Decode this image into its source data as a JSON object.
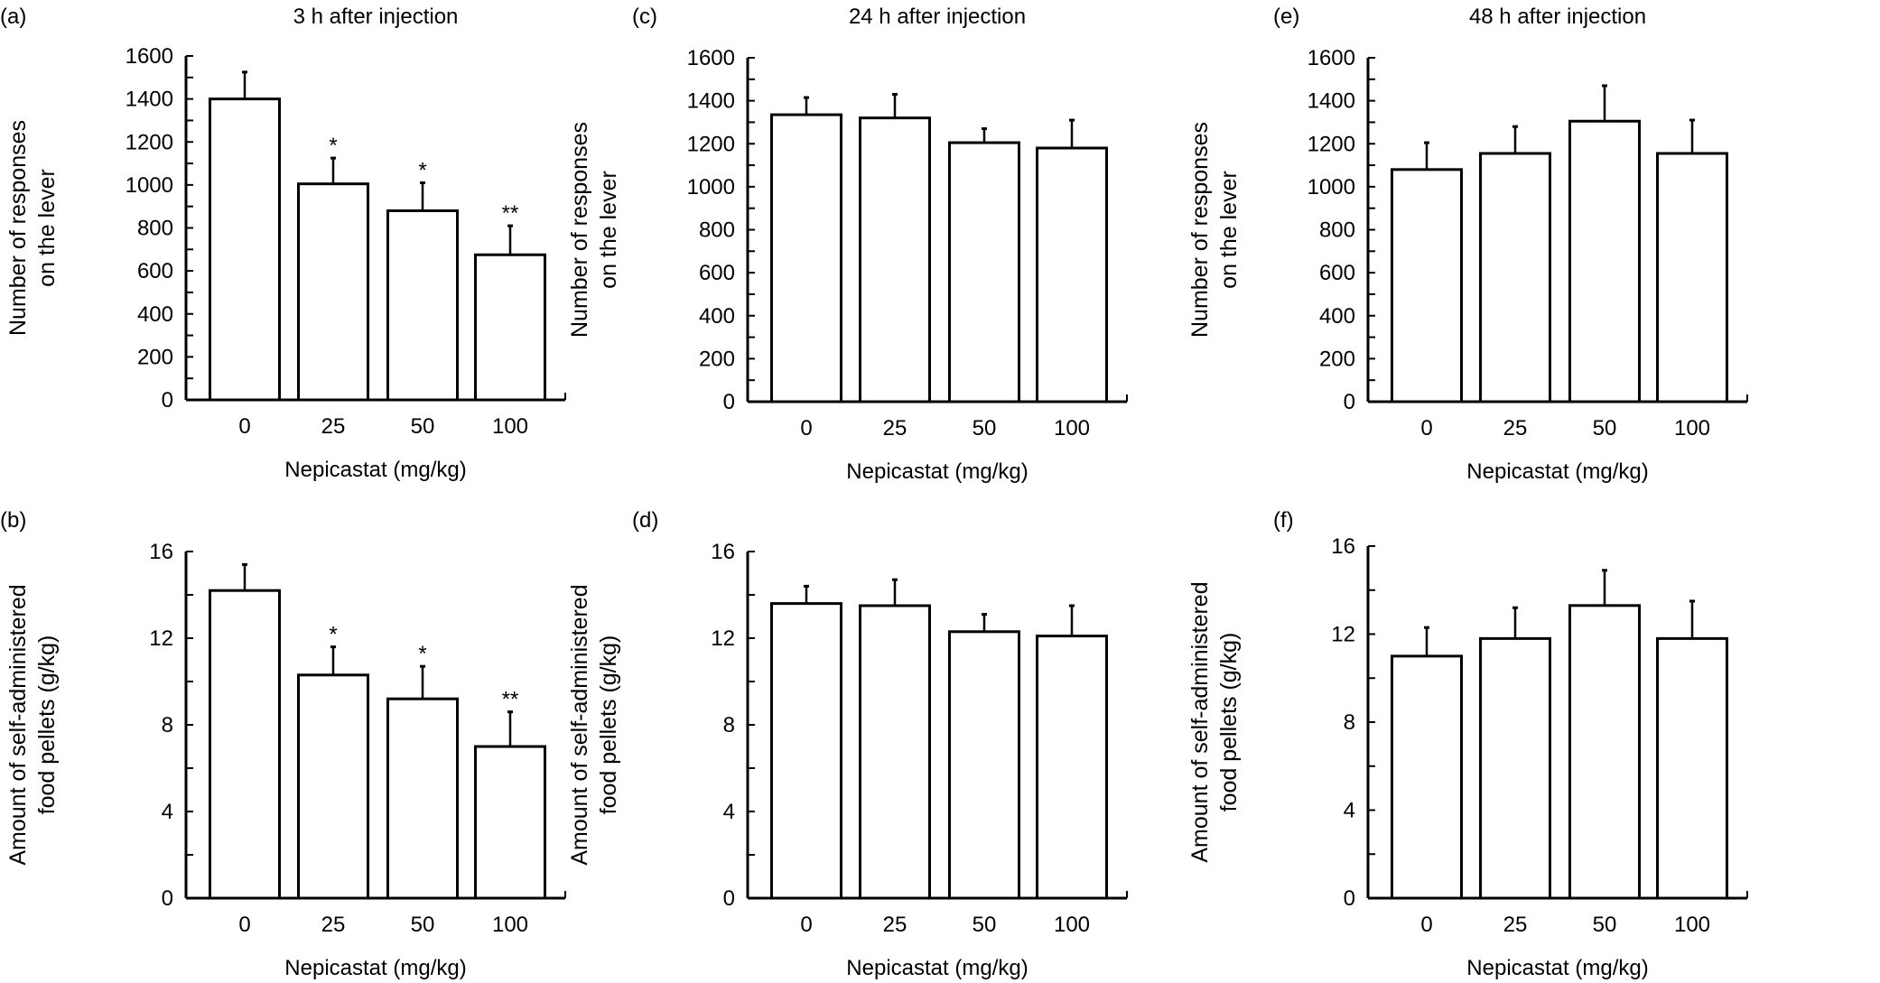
{
  "chart_data": [
    {
      "panel": "(a)",
      "type": "bar",
      "title": "3 h after injection",
      "xlabel": "Nepicastat (mg/kg)",
      "ylabel": [
        "Number of responses",
        "on the lever"
      ],
      "categories": [
        "0",
        "25",
        "50",
        "100"
      ],
      "values": [
        1400,
        1005,
        880,
        675
      ],
      "errors": [
        125,
        120,
        130,
        135
      ],
      "annotations": [
        "",
        "*",
        "*",
        "**"
      ],
      "ylim": [
        0,
        1600
      ],
      "yticks": [
        0,
        200,
        400,
        600,
        800,
        1000,
        1200,
        1400,
        1600
      ],
      "grid": false
    },
    {
      "panel": "(b)",
      "type": "bar",
      "title": "",
      "xlabel": "Nepicastat (mg/kg)",
      "ylabel": [
        "Amount of self-administered",
        "food pellets (g/kg)"
      ],
      "categories": [
        "0",
        "25",
        "50",
        "100"
      ],
      "values": [
        14.2,
        10.3,
        9.2,
        7.0
      ],
      "errors": [
        1.2,
        1.3,
        1.5,
        1.6
      ],
      "annotations": [
        "",
        "*",
        "*",
        "**"
      ],
      "ylim": [
        0,
        16
      ],
      "yticks": [
        0,
        4,
        8,
        12,
        16
      ],
      "grid": false
    },
    {
      "panel": "(c)",
      "type": "bar",
      "title": "24 h after injection",
      "xlabel": "Nepicastat (mg/kg)",
      "ylabel": [
        "Number of responses",
        "on the lever"
      ],
      "categories": [
        "0",
        "25",
        "50",
        "100"
      ],
      "values": [
        1335,
        1320,
        1205,
        1180
      ],
      "errors": [
        80,
        110,
        65,
        130
      ],
      "annotations": [
        "",
        "",
        "",
        ""
      ],
      "ylim": [
        0,
        1600
      ],
      "yticks": [
        0,
        200,
        400,
        600,
        800,
        1000,
        1200,
        1400,
        1600
      ],
      "grid": false
    },
    {
      "panel": "(d)",
      "type": "bar",
      "title": "",
      "xlabel": "Nepicastat (mg/kg)",
      "ylabel": [
        "Amount of self-administered",
        "food pellets (g/kg)"
      ],
      "categories": [
        "0",
        "25",
        "50",
        "100"
      ],
      "values": [
        13.6,
        13.5,
        12.3,
        12.1
      ],
      "errors": [
        0.8,
        1.2,
        0.8,
        1.4
      ],
      "annotations": [
        "",
        "",
        "",
        ""
      ],
      "ylim": [
        0,
        16
      ],
      "yticks": [
        0,
        4,
        8,
        12,
        16
      ],
      "grid": false
    },
    {
      "panel": "(e)",
      "type": "bar",
      "title": "48 h after injection",
      "xlabel": "Nepicastat (mg/kg)",
      "ylabel": [
        "Number of responses",
        "on the lever"
      ],
      "categories": [
        "0",
        "25",
        "50",
        "100"
      ],
      "values": [
        1080,
        1155,
        1305,
        1155
      ],
      "errors": [
        125,
        125,
        165,
        155
      ],
      "annotations": [
        "",
        "",
        "",
        ""
      ],
      "ylim": [
        0,
        1600
      ],
      "yticks": [
        0,
        200,
        400,
        600,
        800,
        1000,
        1200,
        1400,
        1600
      ],
      "grid": false
    },
    {
      "panel": "(f)",
      "type": "bar",
      "title": "",
      "xlabel": "Nepicastat (mg/kg)",
      "ylabel": [
        "Amount of self-administered",
        "food pellets (g/kg)"
      ],
      "categories": [
        "0",
        "25",
        "50",
        "100"
      ],
      "values": [
        11.0,
        11.8,
        13.3,
        11.8
      ],
      "errors": [
        1.3,
        1.4,
        1.6,
        1.7
      ],
      "annotations": [
        "",
        "",
        "",
        ""
      ],
      "ylim": [
        0,
        16
      ],
      "yticks": [
        0,
        4,
        8,
        12,
        16
      ],
      "grid": false
    }
  ]
}
